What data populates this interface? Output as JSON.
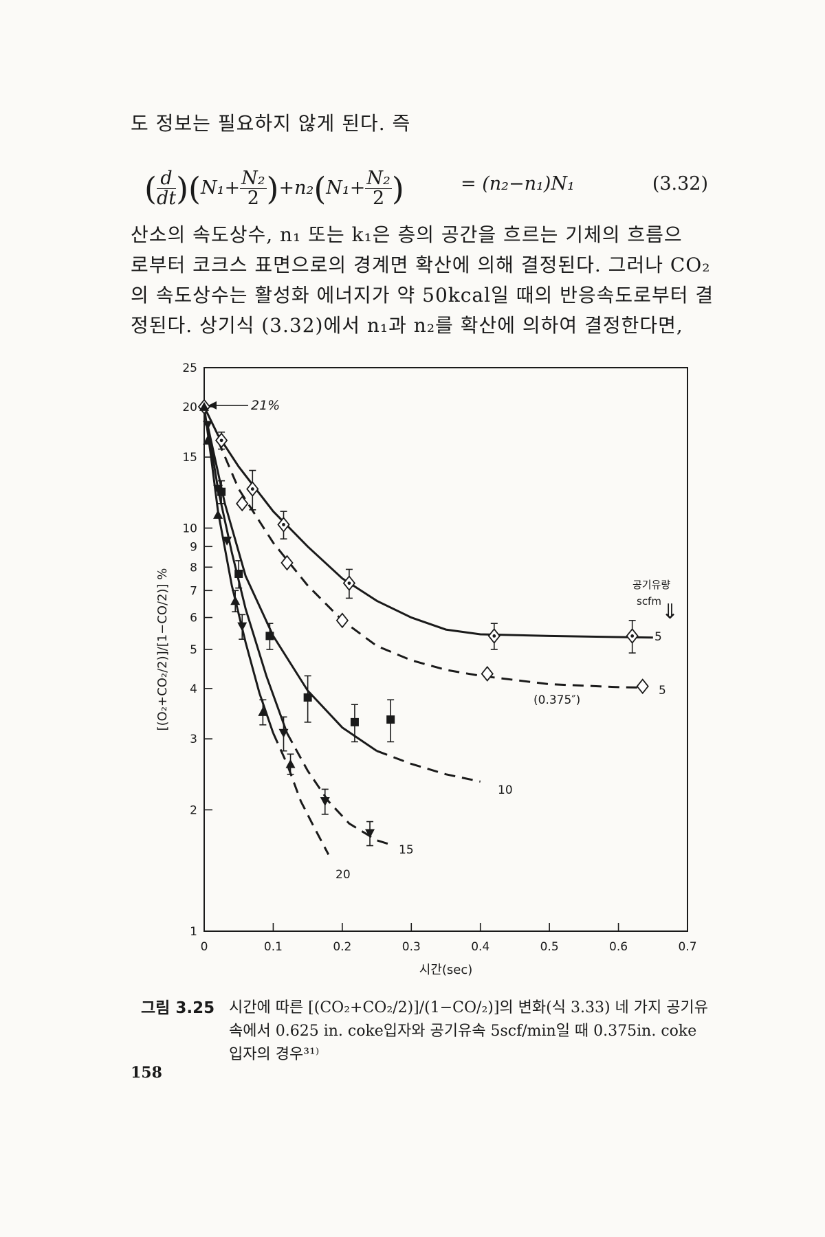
{
  "text": {
    "line1": "도 정보는 필요하지 않게 된다. 즉",
    "para": [
      "산소의 속도상수, n₁ 또는 k₁은 층의 공간을 흐르는 기체의 흐름으",
      "로부터 코크스 표면으로의 경계면 확산에 의해 결정된다. 그러나 CO₂",
      "의 속도상수는 활성화 에너지가 약 50kcal일 때의 반응속도로부터 결",
      "정된다. 상기식 (3.32)에서 n₁과 n₂를 확산에 의하여 결정한다면,"
    ]
  },
  "equation": {
    "d": "d",
    "dt": "dt",
    "N1": "N₁+",
    "N2": "N₂",
    "two": "2",
    "mid": "+n₂",
    "rhs": "=  (n₂−n₁)N₁",
    "number": "(3.32)"
  },
  "chart_data": {
    "type": "scatter",
    "xlabel": "시간(sec)",
    "ylabel": "[(O₂+CO₂/2)]/[1−CO/2)] %",
    "x_ticks": [
      "0",
      "0.1",
      "0.2",
      "0.3",
      "0.4",
      "0.5",
      "0.6",
      "0.7"
    ],
    "y_ticks": [
      "1",
      "2",
      "3",
      "4",
      "5",
      "6",
      "7",
      "8",
      "9",
      "10",
      "15",
      "20",
      "25"
    ],
    "xlim": [
      0,
      0.7
    ],
    "ylim": [
      1,
      25
    ],
    "y_scale": "log",
    "annotation_21": "21%",
    "flow_header_1": "공기유량",
    "flow_header_2": "scfm",
    "arrow": "⇓",
    "special_label": "(0.375″)",
    "series": [
      {
        "name": "5",
        "marker": "diamond-dot",
        "line": "solid",
        "x": [
          0,
          0.025,
          0.07,
          0.115,
          0.21,
          0.42,
          0.62
        ],
        "y": [
          20,
          16.5,
          12.5,
          10.2,
          7.3,
          5.4,
          5.4
        ],
        "errors": [
          0,
          0.8,
          1.4,
          0.8,
          0.6,
          0.4,
          0.5
        ],
        "curve_x": [
          0,
          0.02,
          0.05,
          0.1,
          0.15,
          0.2,
          0.25,
          0.3,
          0.35,
          0.4,
          0.5,
          0.65
        ],
        "curve_y": [
          20,
          17,
          14.2,
          11,
          9,
          7.5,
          6.6,
          6,
          5.6,
          5.45,
          5.4,
          5.35
        ],
        "end_label": "5"
      },
      {
        "name": "5",
        "marker": "diamond-open",
        "line": "dashed",
        "x": [
          0.055,
          0.12,
          0.2,
          0.41,
          0.635
        ],
        "y": [
          11.5,
          8.2,
          5.9,
          4.35,
          4.05
        ],
        "errors": [
          0,
          0,
          0,
          0,
          0
        ],
        "curve_x": [
          0.02,
          0.05,
          0.1,
          0.15,
          0.2,
          0.25,
          0.3,
          0.35,
          0.4,
          0.5,
          0.6,
          0.64
        ],
        "curve_y": [
          16.5,
          12.5,
          9.2,
          7.2,
          5.9,
          5.1,
          4.7,
          4.45,
          4.3,
          4.1,
          4.03,
          4.02
        ],
        "end_label": "5"
      },
      {
        "name": "10",
        "marker": "square",
        "line": "mixed",
        "x": [
          0.025,
          0.05,
          0.095,
          0.15,
          0.218,
          0.27
        ],
        "y": [
          12.3,
          7.7,
          5.4,
          3.8,
          3.3,
          3.35
        ],
        "errors": [
          0.8,
          0.6,
          0.4,
          0.5,
          0.35,
          0.4
        ],
        "curve_x": [
          0.005,
          0.03,
          0.06,
          0.1,
          0.15,
          0.2,
          0.25,
          0.3,
          0.35,
          0.4
        ],
        "curve_y": [
          18,
          11.5,
          7.6,
          5.4,
          3.95,
          3.2,
          2.8,
          2.6,
          2.45,
          2.35
        ],
        "dash_from_index": 6,
        "end_label": "10"
      },
      {
        "name": "15",
        "marker": "triangle-down",
        "line": "mixed",
        "x": [
          0.005,
          0.02,
          0.033,
          0.055,
          0.115,
          0.175,
          0.24
        ],
        "y": [
          18,
          12.5,
          9.3,
          5.7,
          3.1,
          2.1,
          1.75
        ],
        "errors": [
          0,
          0,
          0,
          0.4,
          0.3,
          0.15,
          0.12
        ],
        "curve_x": [
          0.005,
          0.02,
          0.04,
          0.06,
          0.09,
          0.12,
          0.15,
          0.18,
          0.21,
          0.25,
          0.27
        ],
        "curve_y": [
          18,
          12.5,
          8.7,
          6.3,
          4.3,
          3.1,
          2.5,
          2.1,
          1.85,
          1.68,
          1.64
        ],
        "dash_from_index": 5,
        "end_label": "15"
      },
      {
        "name": "20",
        "marker": "triangle-up",
        "line": "mixed",
        "x": [
          0,
          0.005,
          0.02,
          0.045,
          0.085,
          0.125
        ],
        "y": [
          20,
          16.5,
          10.8,
          6.6,
          3.5,
          2.6
        ],
        "errors": [
          0,
          0,
          0,
          0.4,
          0.25,
          0.15
        ],
        "curve_x": [
          0,
          0.01,
          0.02,
          0.04,
          0.06,
          0.08,
          0.1,
          0.12,
          0.14,
          0.16,
          0.18
        ],
        "curve_y": [
          20,
          15,
          11,
          7.2,
          5.2,
          3.9,
          3.1,
          2.6,
          2.1,
          1.8,
          1.55
        ],
        "dash_from_index": 6,
        "end_label": "20"
      }
    ]
  },
  "caption": {
    "label": "그림 3.25",
    "text": "시간에 따른 [(CO₂+CO₂/2)]/(1−CO/₂)]의 변화(식 3.33) 네 가지 공기유속에서 0.625 in. coke입자와 공기유속 5scf/min일 때 0.375in. coke입자의 경우³¹⁾"
  },
  "page_number": "158"
}
